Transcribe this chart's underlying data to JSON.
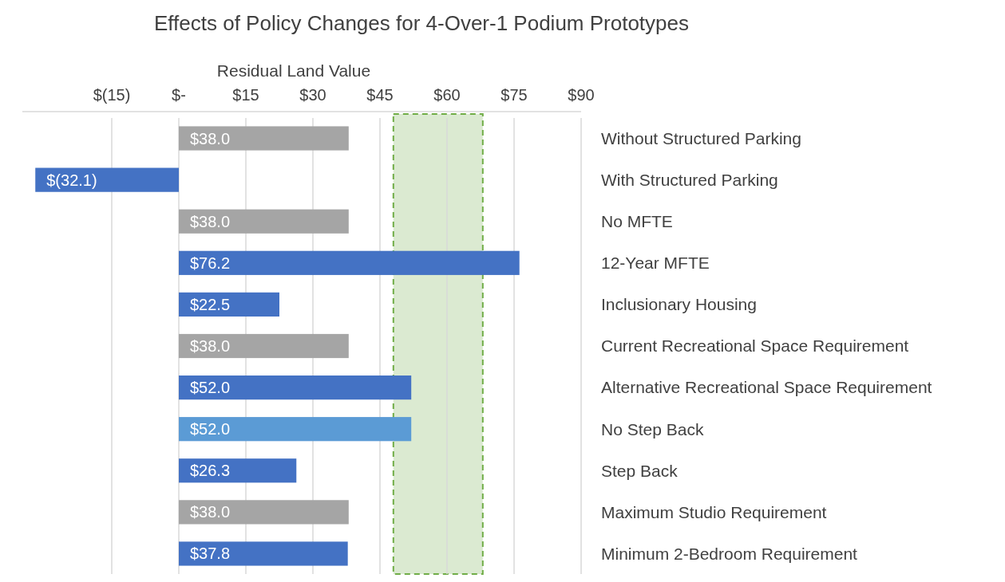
{
  "chart_data": {
    "type": "bar",
    "orientation": "horizontal",
    "title": "Effects of Policy Changes for 4-Over-1 Podium Prototypes",
    "xlabel": "Residual Land Value",
    "categories": [
      "Without Structured Parking",
      "With Structured Parking",
      "No MFTE",
      "12-Year MFTE",
      "Inclusionary Housing",
      "Current Recreational Space Requirement",
      "Alternative Recreational Space Requirement",
      "No Step Back",
      "Step Back",
      "Maximum Studio Requirement",
      "Minimum 2-Bedroom Requirement"
    ],
    "values": [
      38.0,
      -32.1,
      38.0,
      76.2,
      22.5,
      38.0,
      52.0,
      52.0,
      26.3,
      38.0,
      37.8
    ],
    "colors": [
      "#a5a5a5",
      "#4472c4",
      "#a5a5a5",
      "#4472c4",
      "#4472c4",
      "#a5a5a5",
      "#4472c4",
      "#5b9bd5",
      "#4472c4",
      "#a5a5a5",
      "#4472c4"
    ],
    "value_labels": [
      "$38.0",
      "$(32.1)",
      "$38.0",
      "$76.2",
      "$22.5",
      "$38.0",
      "$52.0",
      "$52.0",
      "$26.3",
      "$38.0",
      "$37.8"
    ],
    "xlim": [
      -35,
      90
    ],
    "xticks": [
      {
        "value": -15,
        "label": "$(15)"
      },
      {
        "value": 0,
        "label": "$-"
      },
      {
        "value": 15,
        "label": "$15"
      },
      {
        "value": 30,
        "label": "$30"
      },
      {
        "value": 45,
        "label": "$45"
      },
      {
        "value": 60,
        "label": "$60"
      },
      {
        "value": 75,
        "label": "$75"
      },
      {
        "value": 90,
        "label": "$90"
      }
    ],
    "grid": "x",
    "bands": [
      {
        "axis": "x",
        "from": 48,
        "to": 68,
        "color": "#70ad47"
      }
    ]
  }
}
